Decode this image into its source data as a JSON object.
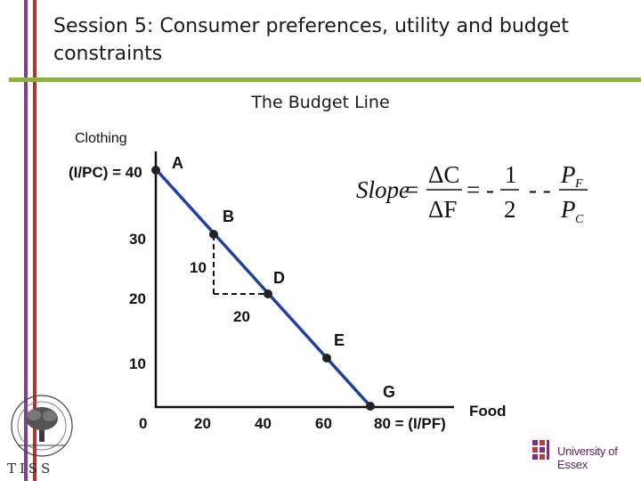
{
  "slide": {
    "title": "Session 5: Consumer preferences, utility and budget constraints",
    "subtitle": "The Budget Line",
    "colors": {
      "bar_purple": "#7b3f98",
      "bar_red": "#b83232",
      "rule_green": "#8bb33b",
      "line_blue": "#1f3fa6"
    }
  },
  "diagram": {
    "y_axis_label": "Clothing",
    "x_axis_label": "Food",
    "y_intercept_label": "(I/PC) = 40",
    "x_intercept_label": "80 = (I/PF)",
    "y_ticks": [
      "30",
      "20",
      "10",
      "0"
    ],
    "x_ticks": [
      "20",
      "40",
      "60"
    ],
    "points": [
      {
        "label": "A",
        "food": 0,
        "clothing": 40
      },
      {
        "label": "B",
        "food": 20,
        "clothing": 30
      },
      {
        "label": "D",
        "food": 40,
        "clothing": 20
      },
      {
        "label": "E",
        "food": 60,
        "clothing": 10
      },
      {
        "label": "G",
        "food": 80,
        "clothing": 0
      }
    ],
    "rise_label": "10",
    "run_label": "20",
    "slope_equation": {
      "slope": "Slope",
      "num1": "ΔC",
      "den1": "ΔF",
      "num2": "1",
      "den2": "2",
      "num3": "P",
      "num3_sub": "F",
      "den3": "P",
      "den3_sub": "C",
      "eq": "=",
      "minus": "-",
      "eq_minus": "= -",
      "minus2": "- -"
    }
  },
  "logos": {
    "left": "TISS",
    "right": "University of Essex"
  }
}
